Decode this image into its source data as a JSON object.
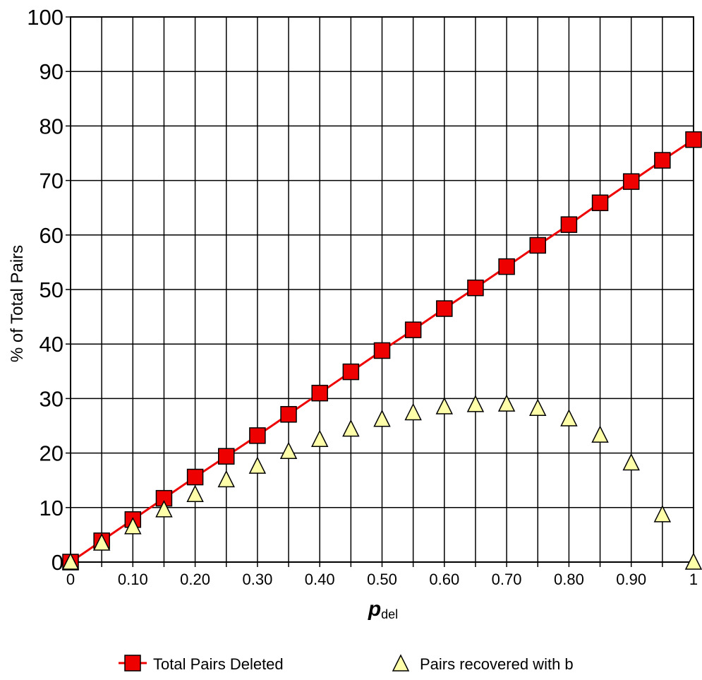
{
  "chart_data": {
    "type": "line",
    "title": "",
    "xlabel": {
      "main": "p",
      "subscript": "del"
    },
    "ylabel": "% of Total Pairs",
    "xlim": [
      0,
      1
    ],
    "ylim": [
      0,
      100
    ],
    "grid": true,
    "legend_position": "bottom",
    "xticks": [
      0,
      0.05,
      0.1,
      0.15,
      0.2,
      0.25,
      0.3,
      0.35,
      0.4,
      0.45,
      0.5,
      0.55,
      0.6,
      0.65,
      0.7,
      0.75,
      0.8,
      0.85,
      0.9,
      0.95,
      1
    ],
    "xtick_labels": [
      {
        "x": 0,
        "label": "0"
      },
      {
        "x": 0.1,
        "label": "0.10"
      },
      {
        "x": 0.2,
        "label": "0.20"
      },
      {
        "x": 0.3,
        "label": "0.30"
      },
      {
        "x": 0.4,
        "label": "0.40"
      },
      {
        "x": 0.5,
        "label": "0.50"
      },
      {
        "x": 0.6,
        "label": "0.60"
      },
      {
        "x": 0.7,
        "label": "0.70"
      },
      {
        "x": 0.8,
        "label": "0.80"
      },
      {
        "x": 0.9,
        "label": "0.90"
      },
      {
        "x": 1,
        "label": "1"
      }
    ],
    "yticks": [
      0,
      10,
      20,
      30,
      40,
      50,
      60,
      70,
      80,
      90,
      100
    ],
    "ytick_labels": [
      "0",
      "10",
      "20",
      "30",
      "40",
      "50",
      "60",
      "70",
      "80",
      "90",
      "100"
    ],
    "x": [
      0,
      0.05,
      0.1,
      0.15,
      0.2,
      0.25,
      0.3,
      0.35,
      0.4,
      0.45,
      0.5,
      0.55,
      0.6,
      0.65,
      0.7,
      0.75,
      0.8,
      0.85,
      0.9,
      0.95,
      1
    ],
    "series": [
      {
        "name": "Total Pairs Deleted",
        "marker": "square",
        "line": true,
        "color": "#ee0000",
        "values": [
          0,
          3.9,
          7.8,
          11.7,
          15.6,
          19.4,
          23.2,
          27.1,
          31.0,
          34.9,
          38.8,
          42.6,
          46.5,
          50.3,
          54.2,
          58.1,
          61.9,
          65.9,
          69.8,
          73.7,
          77.5
        ]
      },
      {
        "name": "Pairs recovered with b",
        "marker": "triangle",
        "line": false,
        "color": "#ffffaa",
        "values": [
          0,
          3.5,
          6.5,
          9.6,
          12.4,
          15.1,
          17.6,
          20.3,
          22.5,
          24.4,
          26.2,
          27.4,
          28.5,
          28.9,
          29.0,
          28.2,
          26.3,
          23.3,
          18.2,
          8.7,
          0
        ]
      }
    ]
  }
}
